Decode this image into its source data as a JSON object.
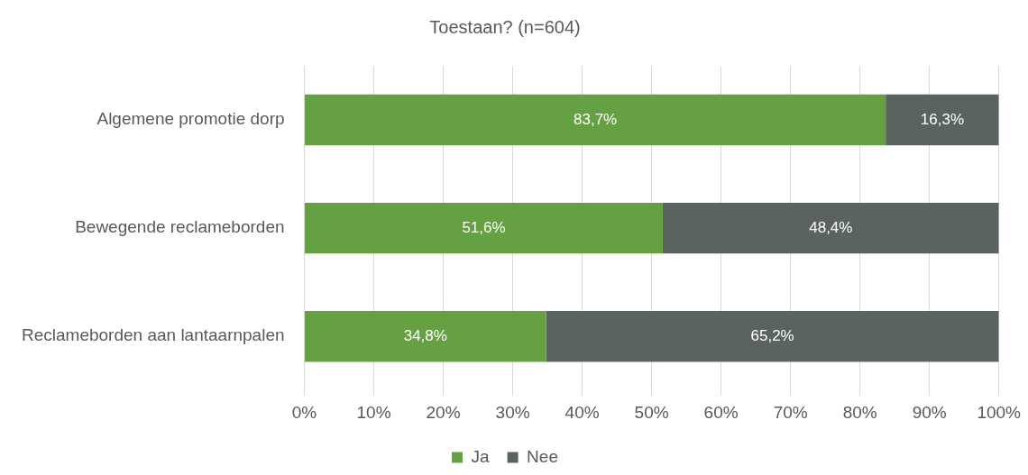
{
  "chart_data": {
    "type": "bar",
    "title": "Toestaan? (n=604)",
    "orientation": "horizontal",
    "stacked": true,
    "categories": [
      "Algemene promotie dorp",
      "Bewegende reclameborden",
      "Reclameborden aan lantaarnpalen"
    ],
    "series": [
      {
        "name": "Ja",
        "color": "#65a042",
        "values": [
          83.7,
          51.6,
          34.8
        ],
        "value_labels": [
          "83,7%",
          "51,6%",
          "34,8%"
        ]
      },
      {
        "name": "Nee",
        "color": "#5b6361",
        "values": [
          16.3,
          48.4,
          65.2
        ],
        "value_labels": [
          "16,3%",
          "48,4%",
          "65,2%"
        ]
      }
    ],
    "xlim": [
      0,
      100
    ],
    "xticks": [
      {
        "value": 0,
        "label": "0%"
      },
      {
        "value": 10,
        "label": "10%"
      },
      {
        "value": 20,
        "label": "20%"
      },
      {
        "value": 30,
        "label": "30%"
      },
      {
        "value": 40,
        "label": "40%"
      },
      {
        "value": 50,
        "label": "50%"
      },
      {
        "value": 60,
        "label": "60%"
      },
      {
        "value": 70,
        "label": "70%"
      },
      {
        "value": 80,
        "label": "80%"
      },
      {
        "value": 90,
        "label": "90%"
      },
      {
        "value": 100,
        "label": "100%"
      }
    ],
    "grid": "x",
    "legend": "bottom"
  }
}
